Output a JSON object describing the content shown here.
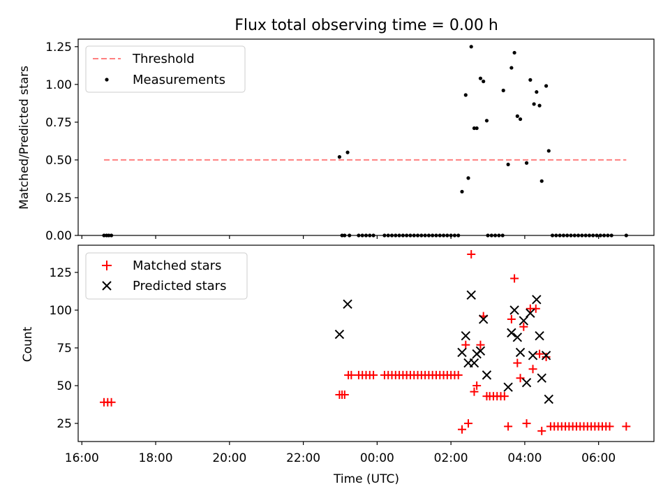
{
  "figure_title": "Flux total observing time = 0.00 h",
  "x_axis": {
    "label": "Time (UTC)",
    "ticks": [
      "16:00",
      "18:00",
      "20:00",
      "22:00",
      "00:00",
      "02:00",
      "04:00",
      "06:00"
    ]
  },
  "chart_data": [
    {
      "type": "scatter",
      "title": "Flux total observing time = 0.00 h",
      "xlabel": "",
      "ylabel": "Matched/Predicted stars",
      "x_unit": "hours since 16:00 UTC",
      "xlim": [
        -0.1,
        15.5
      ],
      "ylim": [
        0.0,
        1.3
      ],
      "yticks": [
        "0.00",
        "0.25",
        "0.50",
        "0.75",
        "1.00",
        "1.25"
      ],
      "legend_position": "top-left",
      "grid": false,
      "lines": [
        {
          "name": "Threshold",
          "color": "#ff7f7f",
          "style": "dashed",
          "x": [
            0.6,
            14.75
          ],
          "y": [
            0.5,
            0.5
          ]
        }
      ],
      "series": [
        {
          "name": "Measurements",
          "marker": "dot",
          "color": "#000000",
          "points": [
            [
              0.6,
              0
            ],
            [
              0.67,
              0
            ],
            [
              0.73,
              0
            ],
            [
              0.8,
              0
            ],
            [
              6.98,
              0.52
            ],
            [
              7.05,
              0
            ],
            [
              7.12,
              0
            ],
            [
              7.2,
              0.55
            ],
            [
              7.25,
              0
            ],
            [
              7.5,
              0
            ],
            [
              7.6,
              0
            ],
            [
              7.7,
              0
            ],
            [
              7.8,
              0
            ],
            [
              7.9,
              0
            ],
            [
              8.2,
              0
            ],
            [
              8.3,
              0
            ],
            [
              8.4,
              0
            ],
            [
              8.5,
              0
            ],
            [
              8.6,
              0
            ],
            [
              8.7,
              0
            ],
            [
              8.8,
              0
            ],
            [
              8.9,
              0
            ],
            [
              9.0,
              0
            ],
            [
              9.1,
              0
            ],
            [
              9.2,
              0
            ],
            [
              9.3,
              0
            ],
            [
              9.4,
              0
            ],
            [
              9.5,
              0
            ],
            [
              9.6,
              0
            ],
            [
              9.7,
              0
            ],
            [
              9.8,
              0
            ],
            [
              9.9,
              0
            ],
            [
              10.0,
              0
            ],
            [
              10.1,
              0
            ],
            [
              10.2,
              0
            ],
            [
              10.3,
              0.29
            ],
            [
              10.4,
              0.93
            ],
            [
              10.47,
              0.38
            ],
            [
              10.55,
              1.25
            ],
            [
              10.63,
              0.71
            ],
            [
              10.7,
              0.71
            ],
            [
              10.8,
              1.04
            ],
            [
              10.88,
              1.02
            ],
            [
              10.97,
              0.76
            ],
            [
              11.0,
              0
            ],
            [
              11.1,
              0
            ],
            [
              11.2,
              0
            ],
            [
              11.3,
              0
            ],
            [
              11.4,
              0
            ],
            [
              11.42,
              0.96
            ],
            [
              11.55,
              0.47
            ],
            [
              11.64,
              1.11
            ],
            [
              11.72,
              1.21
            ],
            [
              11.8,
              0.79
            ],
            [
              11.88,
              0.77
            ],
            [
              12.05,
              0.48
            ],
            [
              12.15,
              1.03
            ],
            [
              12.25,
              0.87
            ],
            [
              12.32,
              0.95
            ],
            [
              12.4,
              0.86
            ],
            [
              12.46,
              0.36
            ],
            [
              12.58,
              0.99
            ],
            [
              12.65,
              0.56
            ],
            [
              12.75,
              0
            ],
            [
              12.85,
              0
            ],
            [
              12.95,
              0
            ],
            [
              13.05,
              0
            ],
            [
              13.15,
              0
            ],
            [
              13.25,
              0
            ],
            [
              13.35,
              0
            ],
            [
              13.45,
              0
            ],
            [
              13.55,
              0
            ],
            [
              13.65,
              0
            ],
            [
              13.75,
              0
            ],
            [
              13.85,
              0
            ],
            [
              13.95,
              0
            ],
            [
              14.05,
              0
            ],
            [
              14.15,
              0
            ],
            [
              14.25,
              0
            ],
            [
              14.35,
              0
            ],
            [
              14.75,
              0
            ]
          ]
        }
      ]
    },
    {
      "type": "scatter",
      "xlabel": "Time (UTC)",
      "ylabel": "Count",
      "x_unit": "hours since 16:00 UTC",
      "xlim": [
        -0.1,
        15.5
      ],
      "ylim": [
        13,
        143
      ],
      "yticks": [
        "25",
        "50",
        "75",
        "100",
        "125"
      ],
      "legend_position": "top-left",
      "grid": false,
      "series": [
        {
          "name": "Matched stars",
          "marker": "plus",
          "color": "#ff0000",
          "points": [
            [
              0.6,
              39
            ],
            [
              0.7,
              39
            ],
            [
              0.8,
              39
            ],
            [
              6.98,
              44
            ],
            [
              7.05,
              44
            ],
            [
              7.12,
              44
            ],
            [
              7.22,
              57
            ],
            [
              7.3,
              57
            ],
            [
              7.5,
              57
            ],
            [
              7.6,
              57
            ],
            [
              7.7,
              57
            ],
            [
              7.8,
              57
            ],
            [
              7.9,
              57
            ],
            [
              8.2,
              57
            ],
            [
              8.3,
              57
            ],
            [
              8.4,
              57
            ],
            [
              8.5,
              57
            ],
            [
              8.6,
              57
            ],
            [
              8.7,
              57
            ],
            [
              8.8,
              57
            ],
            [
              8.9,
              57
            ],
            [
              9.0,
              57
            ],
            [
              9.1,
              57
            ],
            [
              9.2,
              57
            ],
            [
              9.3,
              57
            ],
            [
              9.4,
              57
            ],
            [
              9.5,
              57
            ],
            [
              9.6,
              57
            ],
            [
              9.7,
              57
            ],
            [
              9.8,
              57
            ],
            [
              9.9,
              57
            ],
            [
              10.0,
              57
            ],
            [
              10.1,
              57
            ],
            [
              10.2,
              57
            ],
            [
              10.3,
              21
            ],
            [
              10.4,
              77
            ],
            [
              10.47,
              25
            ],
            [
              10.55,
              137
            ],
            [
              10.63,
              46
            ],
            [
              10.7,
              50
            ],
            [
              10.8,
              77
            ],
            [
              10.88,
              96
            ],
            [
              10.97,
              43
            ],
            [
              11.05,
              43
            ],
            [
              11.15,
              43
            ],
            [
              11.25,
              43
            ],
            [
              11.35,
              43
            ],
            [
              11.45,
              43
            ],
            [
              11.55,
              23
            ],
            [
              11.64,
              94
            ],
            [
              11.72,
              121
            ],
            [
              11.8,
              65
            ],
            [
              11.88,
              55
            ],
            [
              11.97,
              89
            ],
            [
              12.05,
              25
            ],
            [
              12.15,
              101
            ],
            [
              12.22,
              61
            ],
            [
              12.3,
              101
            ],
            [
              12.4,
              71
            ],
            [
              12.46,
              20
            ],
            [
              12.58,
              69
            ],
            [
              12.7,
              23
            ],
            [
              12.8,
              23
            ],
            [
              12.9,
              23
            ],
            [
              13.0,
              23
            ],
            [
              13.1,
              23
            ],
            [
              13.2,
              23
            ],
            [
              13.3,
              23
            ],
            [
              13.4,
              23
            ],
            [
              13.5,
              23
            ],
            [
              13.6,
              23
            ],
            [
              13.7,
              23
            ],
            [
              13.8,
              23
            ],
            [
              13.9,
              23
            ],
            [
              14.0,
              23
            ],
            [
              14.1,
              23
            ],
            [
              14.2,
              23
            ],
            [
              14.3,
              23
            ],
            [
              14.75,
              23
            ]
          ]
        },
        {
          "name": "Predicted stars",
          "marker": "x",
          "color": "#000000",
          "points": [
            [
              6.98,
              84
            ],
            [
              7.2,
              104
            ],
            [
              10.3,
              72
            ],
            [
              10.4,
              83
            ],
            [
              10.47,
              65
            ],
            [
              10.55,
              110
            ],
            [
              10.63,
              65
            ],
            [
              10.7,
              71
            ],
            [
              10.8,
              73
            ],
            [
              10.88,
              94
            ],
            [
              10.97,
              57
            ],
            [
              11.55,
              49
            ],
            [
              11.64,
              85
            ],
            [
              11.72,
              100
            ],
            [
              11.8,
              82
            ],
            [
              11.88,
              72
            ],
            [
              11.97,
              93
            ],
            [
              12.05,
              52
            ],
            [
              12.15,
              98
            ],
            [
              12.22,
              70
            ],
            [
              12.32,
              107
            ],
            [
              12.4,
              83
            ],
            [
              12.46,
              55
            ],
            [
              12.58,
              70
            ],
            [
              12.65,
              41
            ]
          ]
        }
      ]
    }
  ]
}
